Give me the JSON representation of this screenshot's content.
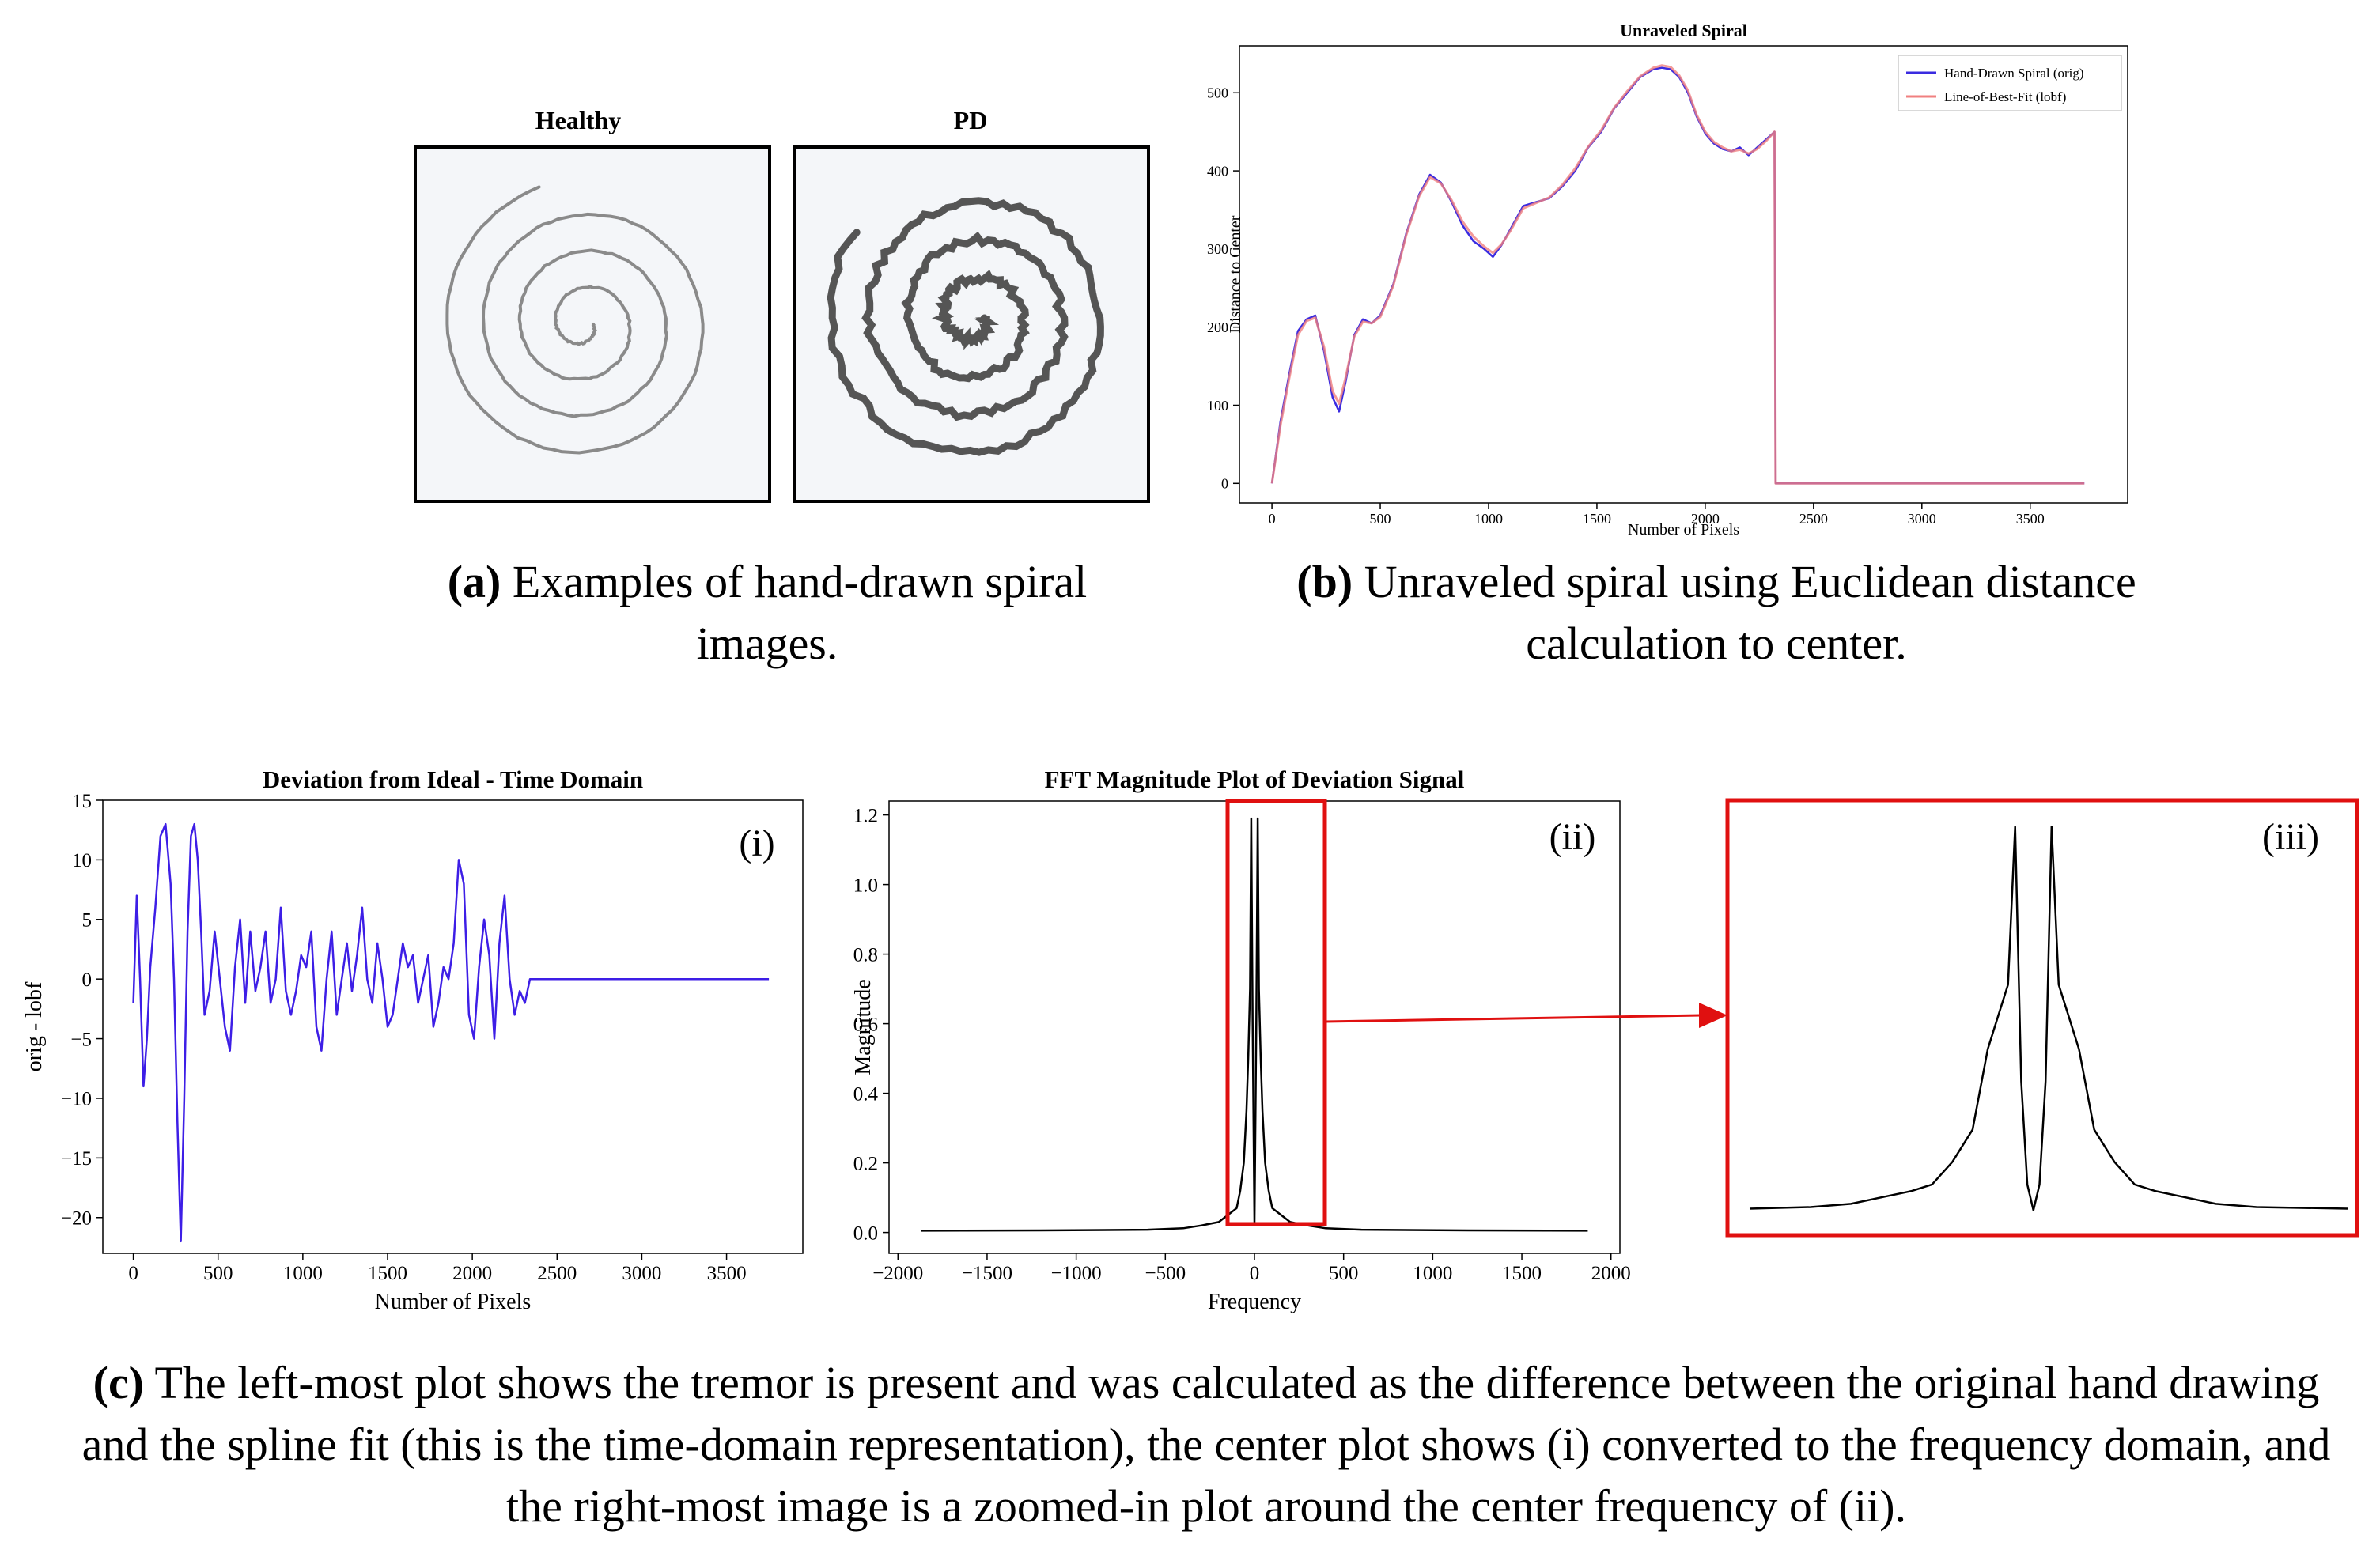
{
  "panel_a": {
    "labels": [
      "Healthy",
      "PD"
    ],
    "caption_tag": "(a)",
    "caption_text": "Examples of hand-drawn spiral images."
  },
  "panel_b": {
    "caption_tag": "(b)",
    "caption_text": "Unraveled spiral using Euclidean distance calculation to center."
  },
  "panel_c": {
    "caption_tag": "(c)",
    "caption_text": "The left-most plot shows the tremor is present and was calculated as the difference between the original hand drawing and the spline fit (this is the time-domain representation), the center plot shows (i) converted to the frequency domain, and the right-most image is a zoomed-in plot around the center frequency of (ii).",
    "sub_labels": [
      "(i)",
      "(ii)",
      "(iii)"
    ]
  },
  "colors": {
    "orig_line": "#3a2be0",
    "lobf_line": "#f08080",
    "deviation_line": "#3d1ee6",
    "fft_line": "#000000",
    "highlight": "#e01010"
  },
  "chart_data": [
    {
      "id": "unraveled",
      "type": "line",
      "title": "Unraveled Spiral",
      "xlabel": "Number of Pixels",
      "ylabel": "Distance to Center",
      "xlim": [
        -150,
        3950
      ],
      "ylim": [
        -25,
        560
      ],
      "xticks": [
        0,
        500,
        1000,
        1500,
        2000,
        2500,
        3000,
        3500
      ],
      "yticks": [
        0,
        100,
        200,
        300,
        400,
        500
      ],
      "legend": "top-right",
      "series": [
        {
          "name": "Hand-Drawn Spiral (orig)",
          "x": [
            0,
            40,
            80,
            120,
            160,
            200,
            240,
            280,
            310,
            340,
            380,
            420,
            460,
            500,
            560,
            620,
            680,
            730,
            780,
            830,
            880,
            930,
            980,
            1020,
            1060,
            1100,
            1160,
            1220,
            1280,
            1340,
            1400,
            1460,
            1520,
            1580,
            1640,
            1700,
            1760,
            1800,
            1840,
            1880,
            1920,
            1960,
            2000,
            2040,
            2080,
            2120,
            2160,
            2200,
            2240,
            2280,
            2320,
            2325,
            2400,
            3000,
            3750
          ],
          "y": [
            0,
            80,
            140,
            195,
            210,
            215,
            170,
            110,
            92,
            130,
            190,
            210,
            205,
            215,
            255,
            320,
            370,
            395,
            385,
            360,
            330,
            310,
            300,
            290,
            305,
            325,
            355,
            360,
            365,
            380,
            400,
            430,
            450,
            480,
            500,
            520,
            530,
            532,
            530,
            520,
            500,
            470,
            448,
            435,
            428,
            425,
            430,
            420,
            430,
            440,
            450,
            0,
            0,
            0,
            0
          ]
        },
        {
          "name": "Line-of-Best-Fit (lobf)",
          "x": [
            0,
            40,
            80,
            120,
            160,
            200,
            240,
            280,
            310,
            340,
            380,
            420,
            460,
            500,
            560,
            620,
            680,
            730,
            780,
            830,
            880,
            930,
            980,
            1020,
            1060,
            1100,
            1160,
            1220,
            1280,
            1340,
            1400,
            1460,
            1520,
            1580,
            1640,
            1700,
            1760,
            1800,
            1840,
            1880,
            1920,
            1960,
            2000,
            2040,
            2080,
            2120,
            2160,
            2200,
            2240,
            2280,
            2320,
            2325,
            2400,
            3000,
            3750
          ],
          "y": [
            0,
            75,
            135,
            190,
            208,
            212,
            175,
            118,
            102,
            135,
            188,
            207,
            205,
            213,
            253,
            318,
            368,
            392,
            384,
            362,
            335,
            316,
            303,
            295,
            306,
            323,
            352,
            359,
            366,
            382,
            403,
            431,
            452,
            481,
            502,
            521,
            532,
            535,
            533,
            522,
            503,
            472,
            450,
            437,
            430,
            425,
            427,
            422,
            428,
            438,
            450,
            0,
            0,
            0,
            0
          ]
        }
      ]
    },
    {
      "id": "deviation",
      "type": "line",
      "title": "Deviation from Ideal - Time Domain",
      "xlabel": "Number of Pixels",
      "ylabel": "orig - lobf",
      "xlim": [
        -180,
        3950
      ],
      "ylim": [
        -23,
        15
      ],
      "xticks": [
        0,
        500,
        1000,
        1500,
        2000,
        2500,
        3000,
        3500
      ],
      "yticks": [
        15,
        10,
        5,
        0,
        -5,
        -10,
        -15,
        -20
      ],
      "series": [
        {
          "name": "",
          "x": [
            0,
            20,
            40,
            60,
            80,
            100,
            130,
            160,
            190,
            220,
            240,
            260,
            280,
            300,
            320,
            340,
            360,
            380,
            400,
            420,
            450,
            480,
            510,
            540,
            570,
            600,
            630,
            660,
            690,
            720,
            750,
            780,
            810,
            840,
            870,
            900,
            930,
            960,
            990,
            1020,
            1050,
            1080,
            1110,
            1140,
            1170,
            1200,
            1230,
            1260,
            1290,
            1320,
            1350,
            1380,
            1410,
            1440,
            1470,
            1500,
            1530,
            1560,
            1590,
            1620,
            1650,
            1680,
            1710,
            1740,
            1770,
            1800,
            1830,
            1860,
            1890,
            1920,
            1950,
            1980,
            2010,
            2040,
            2070,
            2100,
            2130,
            2160,
            2190,
            2220,
            2250,
            2280,
            2310,
            2340,
            2400,
            3000,
            3750
          ],
          "y": [
            -2,
            7,
            0,
            -9,
            -5,
            1,
            6,
            12,
            13,
            8,
            0,
            -12,
            -22,
            -10,
            4,
            12,
            13,
            10,
            4,
            -3,
            -1,
            4,
            0,
            -4,
            -6,
            1,
            5,
            -2,
            4,
            -1,
            1,
            4,
            -2,
            0,
            6,
            -1,
            -3,
            -1,
            2,
            1,
            4,
            -4,
            -6,
            0,
            4,
            -3,
            0,
            3,
            -1,
            2,
            6,
            0,
            -2,
            3,
            0,
            -4,
            -3,
            0,
            3,
            1,
            2,
            -2,
            0,
            2,
            -4,
            -2,
            1,
            0,
            3,
            10,
            8,
            -3,
            -5,
            1,
            5,
            2,
            -5,
            3,
            7,
            0,
            -3,
            -1,
            -2,
            0,
            0,
            0,
            0
          ]
        }
      ]
    },
    {
      "id": "fft",
      "type": "line",
      "title": "FFT Magnitude Plot of Deviation Signal",
      "xlabel": "Frequency",
      "ylabel": "Magnitude",
      "xlim": [
        -2050,
        2050
      ],
      "ylim": [
        -0.06,
        1.24
      ],
      "xticks": [
        -2000,
        -1500,
        -1000,
        -500,
        0,
        500,
        1000,
        1500,
        2000
      ],
      "yticks": [
        0.0,
        0.2,
        0.4,
        0.6,
        0.8,
        1.0,
        1.2
      ],
      "highlight_range": [
        -280,
        310
      ],
      "series": [
        {
          "name": "",
          "x": [
            -1870,
            -1200,
            -600,
            -400,
            -300,
            -200,
            -150,
            -100,
            -80,
            -60,
            -45,
            -35,
            -25,
            -18,
            -10,
            0,
            10,
            18,
            25,
            35,
            45,
            60,
            80,
            100,
            150,
            200,
            300,
            400,
            600,
            1200,
            1870
          ],
          "y": [
            0.005,
            0.006,
            0.008,
            0.012,
            0.02,
            0.03,
            0.05,
            0.07,
            0.12,
            0.2,
            0.35,
            0.5,
            0.7,
            1.19,
            0.6,
            0.02,
            0.6,
            1.19,
            0.7,
            0.5,
            0.35,
            0.2,
            0.12,
            0.07,
            0.05,
            0.03,
            0.02,
            0.012,
            0.008,
            0.006,
            0.005
          ]
        }
      ]
    },
    {
      "id": "fft_zoom",
      "type": "line",
      "title": "",
      "xlim": [
        -280,
        310
      ],
      "ylim": [
        -0.06,
        1.24
      ],
      "series": [
        {
          "name": "",
          "x": [
            -280,
            -220,
            -180,
            -150,
            -120,
            -100,
            -80,
            -60,
            -45,
            -35,
            -25,
            -18,
            -12,
            -6,
            0,
            6,
            12,
            18,
            25,
            35,
            45,
            60,
            80,
            100,
            120,
            150,
            180,
            220,
            310
          ],
          "y": [
            0.005,
            0.01,
            0.02,
            0.04,
            0.06,
            0.08,
            0.15,
            0.25,
            0.5,
            0.6,
            0.7,
            1.19,
            0.4,
            0.08,
            0.0,
            0.08,
            0.4,
            1.19,
            0.7,
            0.6,
            0.5,
            0.25,
            0.15,
            0.08,
            0.06,
            0.04,
            0.02,
            0.01,
            0.005
          ]
        }
      ]
    }
  ]
}
